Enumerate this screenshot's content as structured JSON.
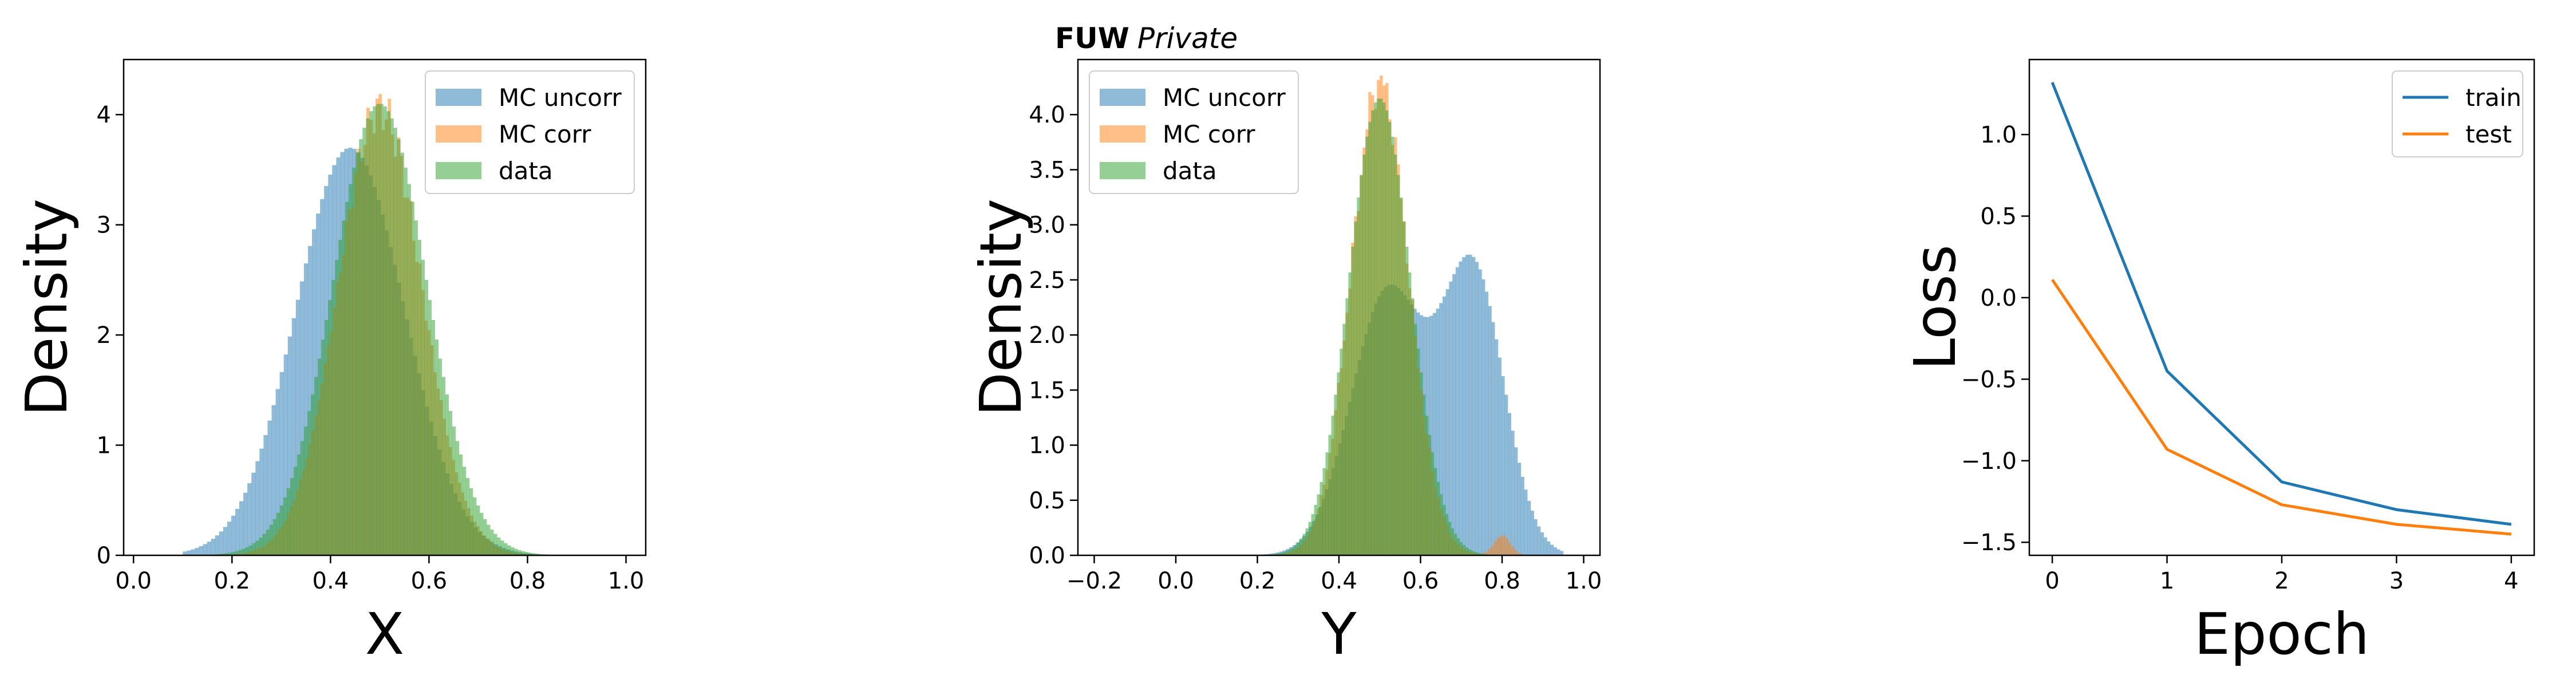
{
  "colors": {
    "blue": "#1f77b4",
    "orange": "#ff7f0e",
    "green": "#2ca02c"
  },
  "chart_data": [
    {
      "type": "histogram",
      "xlabel": "X",
      "ylabel": "Density",
      "xlim": [
        -0.02,
        1.04
      ],
      "ylim": [
        0,
        4.5
      ],
      "xticks": [
        0.0,
        0.2,
        0.4,
        0.6,
        0.8,
        1.0
      ],
      "xtick_labels": [
        "0.0",
        "0.2",
        "0.4",
        "0.6",
        "0.8",
        "1.0"
      ],
      "yticks": [
        0,
        1,
        2,
        3,
        4
      ],
      "ytick_labels": [
        "0",
        "1",
        "2",
        "3",
        "4"
      ],
      "legend": "upper right",
      "alpha": 0.5,
      "series": [
        {
          "name": "MC uncorr",
          "color": "#1f77b4",
          "peaks": [
            [
              0.44,
              0.11,
              3.7
            ]
          ],
          "range": [
            0.1,
            0.92
          ]
        },
        {
          "name": "MC corr",
          "color": "#ff7f0e",
          "peaks": [
            [
              0.5,
              0.085,
              4.05
            ]
          ],
          "range": [
            0.2,
            0.82
          ],
          "spike": 0.05
        },
        {
          "name": "data",
          "color": "#2ca02c",
          "peaks": [
            [
              0.5,
              0.095,
              4.1
            ]
          ],
          "range": [
            0.15,
            0.85
          ]
        }
      ]
    },
    {
      "type": "histogram",
      "title_bold": "FUW",
      "title_italic": "Private",
      "xlabel": "Y",
      "ylabel": "Density",
      "xlim": [
        -0.24,
        1.04
      ],
      "ylim": [
        0,
        4.5
      ],
      "xticks": [
        -0.2,
        0.0,
        0.2,
        0.4,
        0.6,
        0.8,
        1.0
      ],
      "xtick_labels": [
        "−0.2",
        "0.0",
        "0.2",
        "0.4",
        "0.6",
        "0.8",
        "1.0"
      ],
      "yticks": [
        0,
        0.5,
        1,
        1.5,
        2,
        2.5,
        3,
        3.5,
        4
      ],
      "ytick_labels": [
        "0.0",
        "0.5",
        "1.0",
        "1.5",
        "2.0",
        "2.5",
        "3.0",
        "3.5",
        "4.0"
      ],
      "legend": "upper left",
      "alpha": 0.5,
      "series": [
        {
          "name": "MC uncorr",
          "color": "#1f77b4",
          "peaks": [
            [
              0.52,
              0.09,
              2.4
            ],
            [
              0.73,
              0.075,
              2.55
            ]
          ],
          "range": [
            0.15,
            0.95
          ]
        },
        {
          "name": "MC corr",
          "color": "#ff7f0e",
          "peaks": [
            [
              0.5,
              0.07,
              4.3
            ],
            [
              0.8,
              0.02,
              0.18
            ]
          ],
          "range": [
            0.15,
            0.85
          ],
          "spike": 0.05
        },
        {
          "name": "data",
          "color": "#2ca02c",
          "peaks": [
            [
              0.5,
              0.075,
              4.15
            ]
          ],
          "range": [
            0.15,
            0.85
          ]
        }
      ]
    },
    {
      "type": "line",
      "xlabel": "Epoch",
      "ylabel": "Loss",
      "x": [
        0,
        1,
        2,
        3,
        4
      ],
      "xlim": [
        -0.2,
        4.2
      ],
      "ylim": [
        -1.58,
        1.46
      ],
      "xticks": [
        0,
        1,
        2,
        3,
        4
      ],
      "xtick_labels": [
        "0",
        "1",
        "2",
        "3",
        "4"
      ],
      "yticks": [
        -1.5,
        -1.0,
        -0.5,
        0.0,
        0.5,
        1.0
      ],
      "ytick_labels": [
        "−1.5",
        "−1.0",
        "−0.5",
        "0.0",
        "0.5",
        "1.0"
      ],
      "legend": "upper right",
      "series": [
        {
          "name": "train",
          "color": "#1f77b4",
          "values": [
            1.32,
            -0.45,
            -1.13,
            -1.3,
            -1.39
          ]
        },
        {
          "name": "test",
          "color": "#ff7f0e",
          "values": [
            0.11,
            -0.93,
            -1.27,
            -1.39,
            -1.45
          ]
        }
      ]
    }
  ]
}
